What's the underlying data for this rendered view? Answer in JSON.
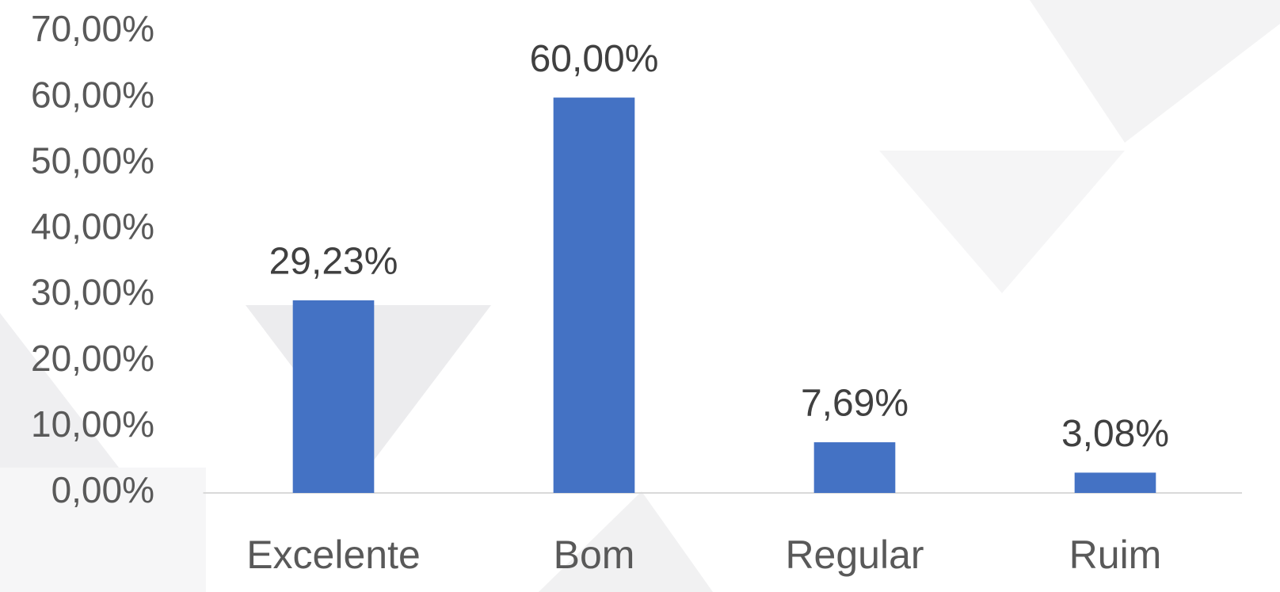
{
  "chart_data": {
    "type": "bar",
    "categories": [
      "Excelente",
      "Bom",
      "Regular",
      "Ruim"
    ],
    "values": [
      29.23,
      60,
      7.69,
      3.08
    ],
    "value_labels": [
      "29,23%",
      "60,00%",
      "7,69%",
      "3,08%"
    ],
    "color": "#4472c4",
    "ylim": [
      0,
      70
    ],
    "yticks": [
      {
        "value": 0,
        "label": "0,00%"
      },
      {
        "value": 10,
        "label": "10,00%"
      },
      {
        "value": 20,
        "label": "20,00%"
      },
      {
        "value": 30,
        "label": "30,00%"
      },
      {
        "value": 40,
        "label": "40,00%"
      },
      {
        "value": 50,
        "label": "50,00%"
      },
      {
        "value": 60,
        "label": "60,00%"
      },
      {
        "value": 70,
        "label": "70,00%"
      }
    ],
    "grid": false
  }
}
